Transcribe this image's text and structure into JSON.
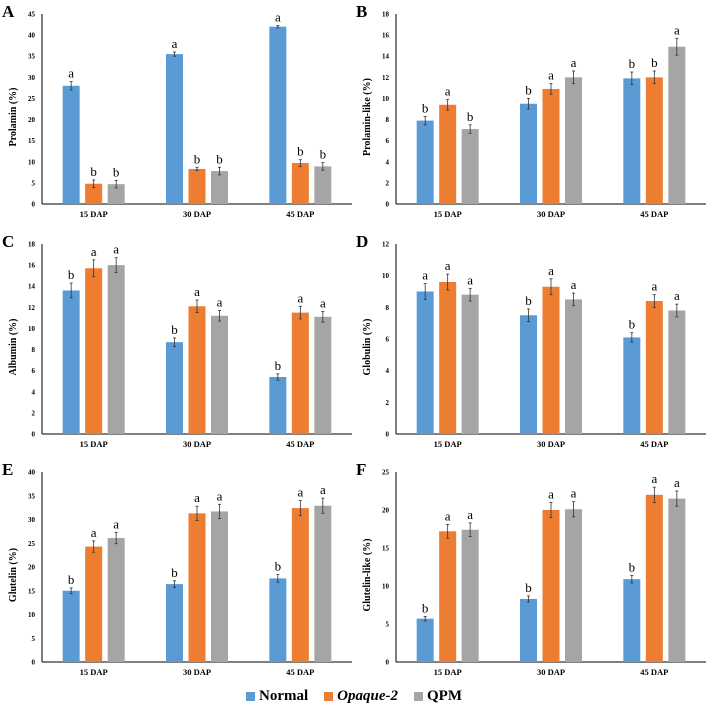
{
  "chart_data": [
    {
      "type": "bar",
      "panel": "A",
      "ylabel": "Prolamin (%)",
      "ylim": [
        0,
        45
      ],
      "yticks": [
        0,
        5,
        10,
        15,
        20,
        25,
        30,
        35,
        40,
        45
      ],
      "categories": [
        "15 DAP",
        "30 DAP",
        "45 DAP"
      ],
      "series": [
        {
          "name": "Normal",
          "values": [
            28.0,
            35.5,
            42.0
          ],
          "errors": [
            1.0,
            0.5,
            0.3
          ],
          "letters": [
            "a",
            "a",
            "a"
          ]
        },
        {
          "name": "Opaque-2",
          "values": [
            4.8,
            8.3,
            9.7
          ],
          "errors": [
            0.9,
            0.4,
            0.8
          ],
          "letters": [
            "b",
            "b",
            "b"
          ]
        },
        {
          "name": "QPM",
          "values": [
            4.7,
            7.8,
            8.9
          ],
          "errors": [
            0.9,
            0.9,
            0.9
          ],
          "letters": [
            "b",
            "b",
            "b"
          ]
        }
      ]
    },
    {
      "type": "bar",
      "panel": "B",
      "ylabel": "Prolamin-like (%)",
      "ylim": [
        0,
        18
      ],
      "yticks": [
        0,
        2,
        4,
        6,
        8,
        10,
        12,
        14,
        16,
        18
      ],
      "categories": [
        "15 DAP",
        "30 DAP",
        "45 DAP"
      ],
      "series": [
        {
          "name": "Normal",
          "values": [
            7.9,
            9.5,
            11.9
          ],
          "errors": [
            0.4,
            0.5,
            0.6
          ],
          "letters": [
            "b",
            "b",
            "b"
          ]
        },
        {
          "name": "Opaque-2",
          "values": [
            9.4,
            10.9,
            12.0
          ],
          "errors": [
            0.5,
            0.5,
            0.6
          ],
          "letters": [
            "a",
            "a",
            "b"
          ]
        },
        {
          "name": "QPM",
          "values": [
            7.1,
            12.0,
            14.9
          ],
          "errors": [
            0.4,
            0.6,
            0.8
          ],
          "letters": [
            "b",
            "a",
            "a"
          ]
        }
      ]
    },
    {
      "type": "bar",
      "panel": "C",
      "ylabel": "Albumin (%)",
      "ylim": [
        0,
        18
      ],
      "yticks": [
        0,
        2,
        4,
        6,
        8,
        10,
        12,
        14,
        16,
        18
      ],
      "categories": [
        "15 DAP",
        "30 DAP",
        "45 DAP"
      ],
      "series": [
        {
          "name": "Normal",
          "values": [
            13.6,
            8.7,
            5.4
          ],
          "errors": [
            0.7,
            0.4,
            0.3
          ],
          "letters": [
            "b",
            "b",
            "b"
          ]
        },
        {
          "name": "Opaque-2",
          "values": [
            15.7,
            12.1,
            11.5
          ],
          "errors": [
            0.8,
            0.6,
            0.6
          ],
          "letters": [
            "a",
            "a",
            "a"
          ]
        },
        {
          "name": "QPM",
          "values": [
            16.0,
            11.2,
            11.1
          ],
          "errors": [
            0.7,
            0.5,
            0.5
          ],
          "letters": [
            "a",
            "a",
            "a"
          ]
        }
      ]
    },
    {
      "type": "bar",
      "panel": "D",
      "ylabel": "Globulin (%)",
      "ylim": [
        0,
        12
      ],
      "yticks": [
        0,
        2,
        4,
        6,
        8,
        10,
        12
      ],
      "categories": [
        "15 DAP",
        "30 DAP",
        "45 DAP"
      ],
      "series": [
        {
          "name": "Normal",
          "values": [
            9.0,
            7.5,
            6.1
          ],
          "errors": [
            0.5,
            0.4,
            0.3
          ],
          "letters": [
            "a",
            "b",
            "b"
          ]
        },
        {
          "name": "Opaque-2",
          "values": [
            9.6,
            9.3,
            8.4
          ],
          "errors": [
            0.5,
            0.5,
            0.4
          ],
          "letters": [
            "a",
            "a",
            "a"
          ]
        },
        {
          "name": "QPM",
          "values": [
            8.8,
            8.5,
            7.8
          ],
          "errors": [
            0.4,
            0.4,
            0.4
          ],
          "letters": [
            "a",
            "a",
            "a"
          ]
        }
      ]
    },
    {
      "type": "bar",
      "panel": "E",
      "ylabel": "Glutelin (%)",
      "ylim": [
        0,
        40
      ],
      "yticks": [
        0,
        5,
        10,
        15,
        20,
        25,
        30,
        35,
        40
      ],
      "categories": [
        "15 DAP",
        "30 DAP",
        "45 DAP"
      ],
      "series": [
        {
          "name": "Normal",
          "values": [
            15.0,
            16.4,
            17.6
          ],
          "errors": [
            0.6,
            0.7,
            0.8
          ],
          "letters": [
            "b",
            "b",
            "b"
          ]
        },
        {
          "name": "Opaque-2",
          "values": [
            24.3,
            31.3,
            32.4
          ],
          "errors": [
            1.2,
            1.5,
            1.6
          ],
          "letters": [
            "a",
            "a",
            "a"
          ]
        },
        {
          "name": "QPM",
          "values": [
            26.1,
            31.7,
            32.9
          ],
          "errors": [
            1.2,
            1.5,
            1.6
          ],
          "letters": [
            "a",
            "a",
            "a"
          ]
        }
      ]
    },
    {
      "type": "bar",
      "panel": "F",
      "ylabel": "Glutelin-like (%)",
      "ylim": [
        0,
        25
      ],
      "yticks": [
        0,
        5,
        10,
        15,
        20,
        25
      ],
      "categories": [
        "15 DAP",
        "30 DAP",
        "45 DAP"
      ],
      "series": [
        {
          "name": "Normal",
          "values": [
            5.7,
            8.3,
            10.9
          ],
          "errors": [
            0.3,
            0.4,
            0.5
          ],
          "letters": [
            "b",
            "b",
            "b"
          ]
        },
        {
          "name": "Opaque-2",
          "values": [
            17.2,
            20.0,
            22.0
          ],
          "errors": [
            0.9,
            1.0,
            1.0
          ],
          "letters": [
            "a",
            "a",
            "a"
          ]
        },
        {
          "name": "QPM",
          "values": [
            17.4,
            20.1,
            21.5
          ],
          "errors": [
            0.9,
            1.0,
            1.0
          ],
          "letters": [
            "a",
            "a",
            "a"
          ]
        }
      ]
    }
  ],
  "legend": {
    "items": [
      "Normal",
      "Opaque-2",
      "QPM"
    ],
    "placement": "bottom-center"
  },
  "colors": {
    "Normal": "#5b9bd5",
    "Opaque-2": "#ed7d31",
    "QPM": "#a5a5a5"
  }
}
